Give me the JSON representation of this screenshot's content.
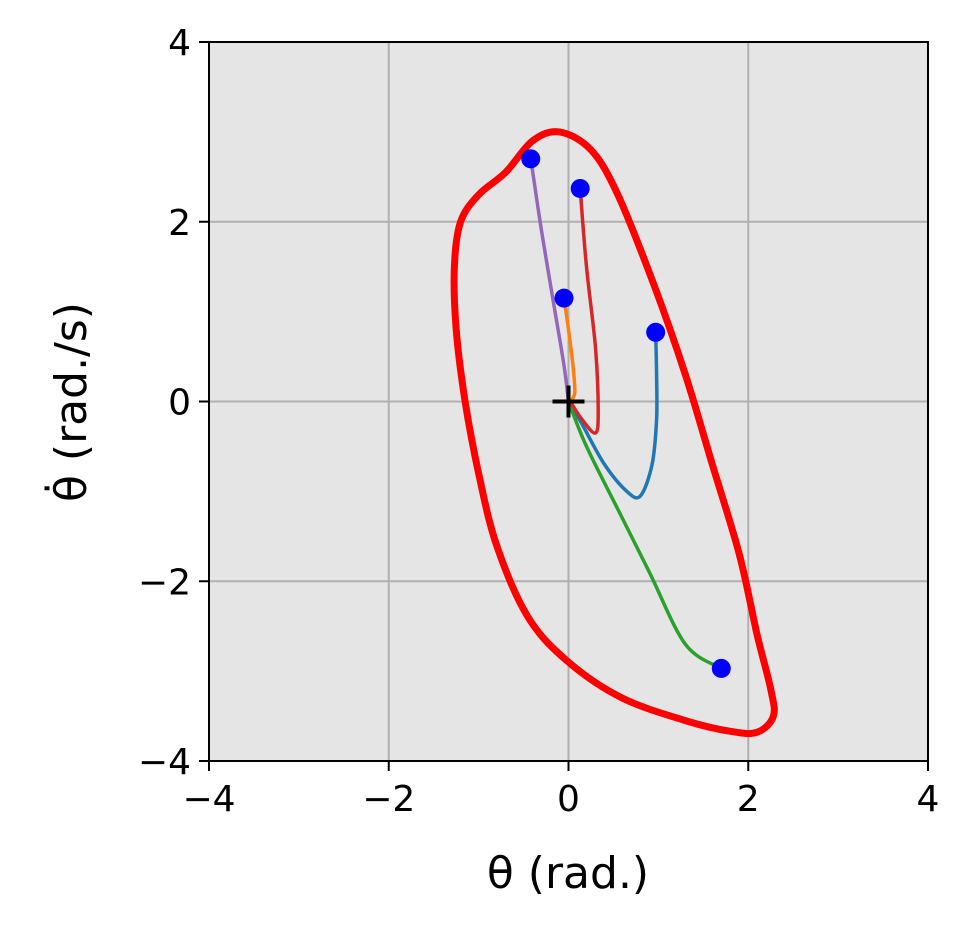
{
  "chart_data": {
    "type": "line",
    "title": "",
    "xlabel": "θ (rad.)",
    "ylabel": "θ̇ (rad./s)",
    "xlim": [
      -4,
      4
    ],
    "ylim": [
      -4,
      4
    ],
    "xticks": [
      -4,
      -2,
      0,
      2,
      4
    ],
    "yticks": [
      -4,
      -2,
      0,
      2,
      4
    ],
    "xtick_labels": [
      "−4",
      "−2",
      "0",
      "2",
      "4"
    ],
    "ytick_labels": [
      "−4",
      "−2",
      "0",
      "2",
      "4"
    ],
    "grid": true,
    "background_color": "#e5e5e5",
    "equilibrium": {
      "x": 0,
      "y": 0,
      "marker": "plus",
      "color": "#000000"
    },
    "boundary": {
      "color": "#ff0000",
      "points": [
        [
          -0.1,
          3.0
        ],
        [
          0.25,
          2.8
        ],
        [
          0.55,
          2.3
        ],
        [
          0.95,
          1.3
        ],
        [
          1.3,
          0.3
        ],
        [
          1.6,
          -0.7
        ],
        [
          1.9,
          -1.7
        ],
        [
          2.1,
          -2.6
        ],
        [
          2.25,
          -3.2
        ],
        [
          2.28,
          -3.5
        ],
        [
          2.1,
          -3.68
        ],
        [
          1.8,
          -3.67
        ],
        [
          1.3,
          -3.55
        ],
        [
          0.6,
          -3.3
        ],
        [
          0.0,
          -2.9
        ],
        [
          -0.45,
          -2.4
        ],
        [
          -0.8,
          -1.6
        ],
        [
          -1.0,
          -0.8
        ],
        [
          -1.15,
          0.0
        ],
        [
          -1.25,
          0.8
        ],
        [
          -1.27,
          1.5
        ],
        [
          -1.2,
          2.0
        ],
        [
          -1.0,
          2.3
        ],
        [
          -0.7,
          2.55
        ],
        [
          -0.4,
          2.9
        ],
        [
          -0.1,
          3.0
        ]
      ]
    },
    "series": [
      {
        "color": "#1f77b4",
        "start": [
          0.97,
          0.77
        ],
        "points": [
          [
            0.97,
            0.77
          ],
          [
            0.98,
            0.3
          ],
          [
            0.98,
            -0.2
          ],
          [
            0.93,
            -0.7
          ],
          [
            0.8,
            -1.05
          ],
          [
            0.65,
            -1.0
          ],
          [
            0.4,
            -0.7
          ],
          [
            0.15,
            -0.25
          ],
          [
            0.0,
            0.0
          ]
        ]
      },
      {
        "color": "#ff7f0e",
        "start": [
          -0.05,
          1.15
        ],
        "points": [
          [
            -0.05,
            1.15
          ],
          [
            0.0,
            0.8
          ],
          [
            0.05,
            0.4
          ],
          [
            0.07,
            0.1
          ],
          [
            0.02,
            0.0
          ]
        ]
      },
      {
        "color": "#2ca02c",
        "start": [
          1.7,
          -2.97
        ],
        "points": [
          [
            1.7,
            -2.97
          ],
          [
            1.3,
            -2.7
          ],
          [
            0.9,
            -1.9
          ],
          [
            0.55,
            -1.2
          ],
          [
            0.2,
            -0.5
          ],
          [
            0.0,
            0.0
          ]
        ]
      },
      {
        "color": "#d62728",
        "start": [
          0.13,
          2.37
        ],
        "points": [
          [
            0.13,
            2.37
          ],
          [
            0.2,
            1.5
          ],
          [
            0.3,
            0.6
          ],
          [
            0.33,
            -0.1
          ],
          [
            0.3,
            -0.35
          ],
          [
            0.15,
            -0.2
          ],
          [
            0.02,
            0.0
          ]
        ]
      },
      {
        "color": "#9467bd",
        "start": [
          -0.42,
          2.7
        ],
        "points": [
          [
            -0.42,
            2.7
          ],
          [
            -0.3,
            1.9
          ],
          [
            -0.15,
            1.0
          ],
          [
            -0.05,
            0.4
          ],
          [
            0.0,
            0.0
          ]
        ]
      }
    ],
    "start_marker_color": "#0000ff"
  }
}
